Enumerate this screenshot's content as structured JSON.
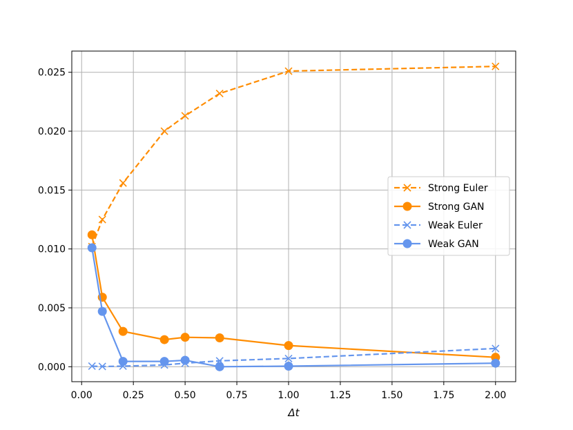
{
  "chart_data": {
    "type": "line",
    "xlabel": "Δt",
    "ylabel": "",
    "xlim": [
      -0.0475,
      2.0975
    ],
    "ylim": [
      -0.00127,
      0.0268
    ],
    "xticks": [
      0.0,
      0.25,
      0.5,
      0.75,
      1.0,
      1.25,
      1.5,
      1.75,
      2.0
    ],
    "xtick_labels": [
      "0.00",
      "0.25",
      "0.50",
      "0.75",
      "1.00",
      "1.25",
      "1.50",
      "1.75",
      "2.00"
    ],
    "yticks": [
      0.0,
      0.005,
      0.01,
      0.015,
      0.02,
      0.025
    ],
    "ytick_labels": [
      "0.000",
      "0.005",
      "0.010",
      "0.015",
      "0.020",
      "0.025"
    ],
    "grid": true,
    "legend_position": "center-right",
    "series": [
      {
        "name": "Strong Euler",
        "color": "#ff8c00",
        "linestyle": "dashed",
        "marker": "x",
        "x": [
          0.05,
          0.1,
          0.2,
          0.4,
          0.5,
          0.667,
          1.0,
          2.0
        ],
        "y": [
          0.0102,
          0.0125,
          0.0156,
          0.02,
          0.0213,
          0.0232,
          0.0251,
          0.0255
        ]
      },
      {
        "name": "Strong GAN",
        "color": "#ff8c00",
        "linestyle": "solid",
        "marker": "o",
        "x": [
          0.05,
          0.1,
          0.2,
          0.4,
          0.5,
          0.667,
          1.0,
          2.0
        ],
        "y": [
          0.0112,
          0.0059,
          0.003,
          0.0023,
          0.0025,
          0.00245,
          0.0018,
          0.0008
        ]
      },
      {
        "name": "Weak Euler",
        "color": "#6495ed",
        "linestyle": "dashed",
        "marker": "x",
        "x": [
          0.05,
          0.1,
          0.2,
          0.4,
          0.5,
          0.667,
          1.0,
          2.0
        ],
        "y": [
          5e-05,
          2e-05,
          5e-05,
          0.00015,
          0.0003,
          0.0005,
          0.0007,
          0.00155
        ]
      },
      {
        "name": "Weak GAN",
        "color": "#6495ed",
        "linestyle": "solid",
        "marker": "o",
        "x": [
          0.05,
          0.1,
          0.2,
          0.4,
          0.5,
          0.667,
          1.0,
          2.0
        ],
        "y": [
          0.0101,
          0.0047,
          0.00045,
          0.00045,
          0.00055,
          0.0,
          5e-05,
          0.0003
        ]
      }
    ]
  }
}
